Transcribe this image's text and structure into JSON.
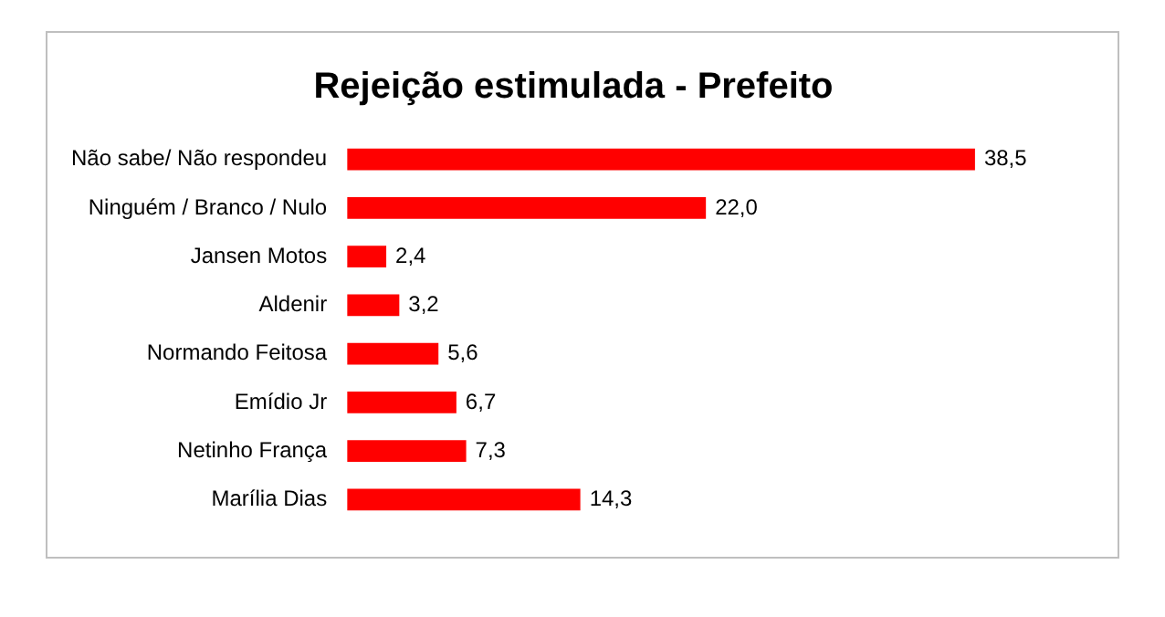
{
  "chart_data": {
    "type": "bar",
    "orientation": "horizontal",
    "title": "Rejeição estimulada - Prefeito",
    "categories": [
      "Não sabe/ Não respondeu",
      "Ninguém / Branco / Nulo",
      "Jansen Motos",
      "Aldenir",
      "Normando Feitosa",
      "Emídio Jr",
      "Netinho França",
      "Marília Dias"
    ],
    "values": [
      38.5,
      22.0,
      2.4,
      3.2,
      5.6,
      6.7,
      7.3,
      14.3
    ],
    "value_labels": [
      "38,5",
      "22,0",
      "2,4",
      "3,2",
      "5,6",
      "6,7",
      "7,3",
      "14,3"
    ],
    "color": "#ff0000",
    "legend": false
  }
}
